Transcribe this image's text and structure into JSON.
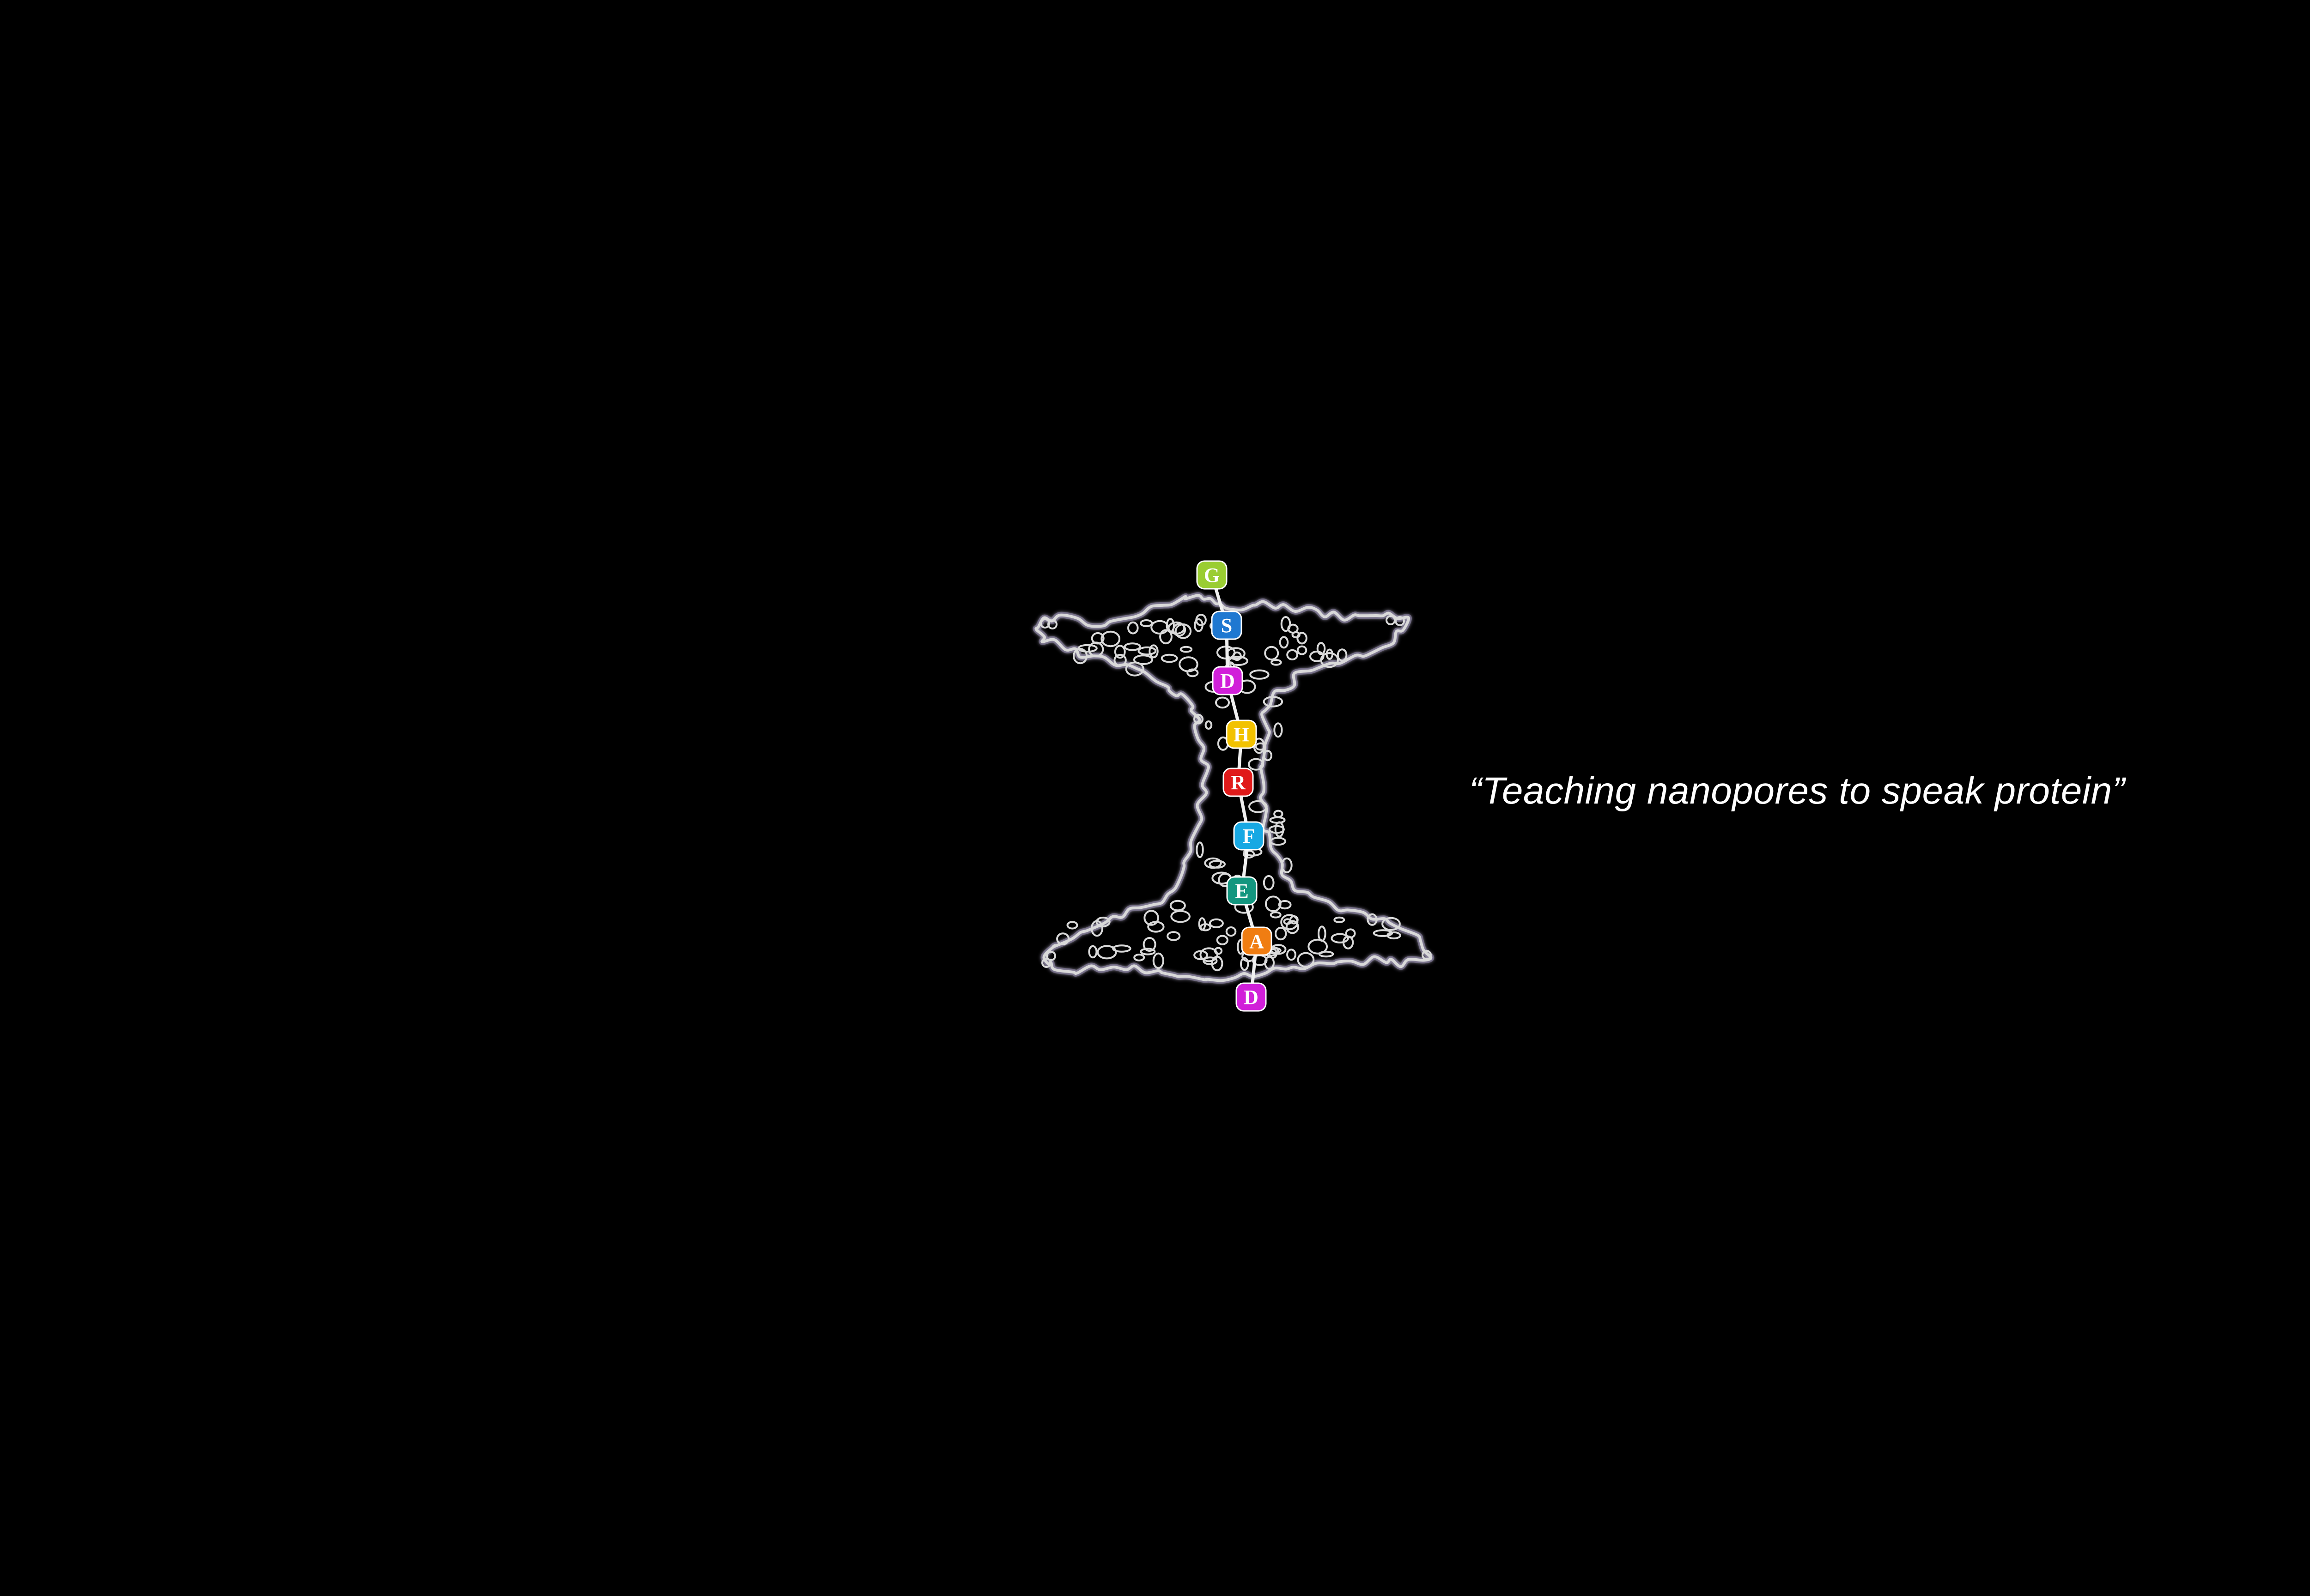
{
  "caption": "“Teaching nanopores to speak protein”",
  "pore": {
    "outline_color": "#d9d9d9",
    "outline_glow": "#8a7fa8",
    "backbone_color": "#f0f0f0"
  },
  "residues": [
    {
      "letter": "G",
      "color": "#9acd32"
    },
    {
      "letter": "S",
      "color": "#1f78d1"
    },
    {
      "letter": "D",
      "color": "#d11fd9"
    },
    {
      "letter": "H",
      "color": "#f2c200"
    },
    {
      "letter": "R",
      "color": "#e01a1a"
    },
    {
      "letter": "F",
      "color": "#17a8e3"
    },
    {
      "letter": "E",
      "color": "#13967f"
    },
    {
      "letter": "A",
      "color": "#f07d12"
    },
    {
      "letter": "D",
      "color": "#d11fd9"
    }
  ]
}
